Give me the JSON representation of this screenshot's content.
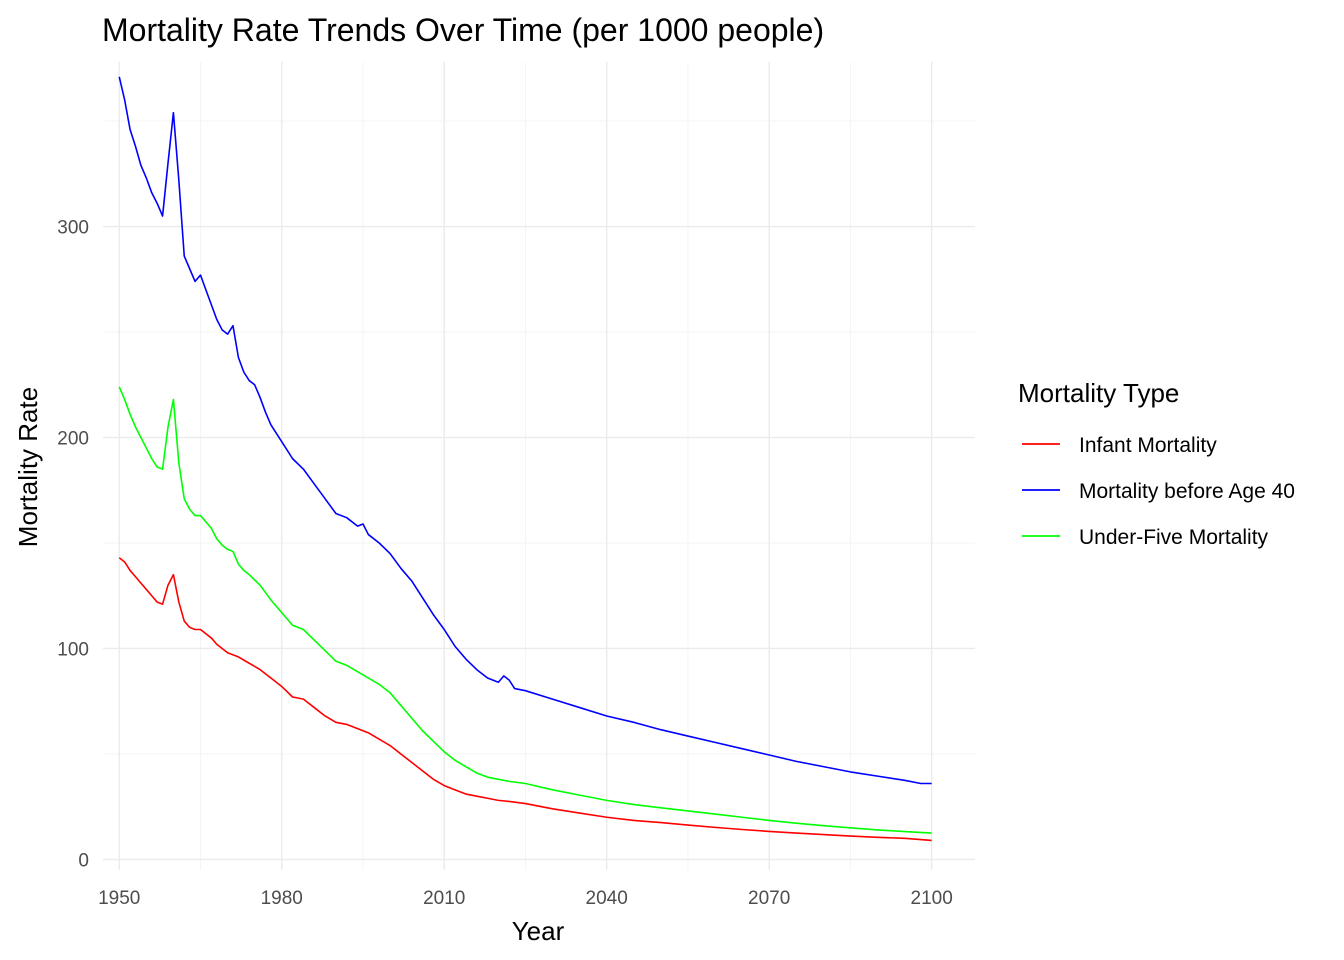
{
  "chart_data": {
    "type": "line",
    "title": "Mortality Rate Trends Over Time (per 1000 people)",
    "xlabel": "Year",
    "ylabel": "Mortality Rate",
    "xlim": [
      1947,
      2108
    ],
    "ylim": [
      -5,
      378
    ],
    "x_ticks": [
      1950,
      1980,
      2010,
      2040,
      2070,
      2100
    ],
    "x_minor_ticks": [
      1965,
      1995,
      2025,
      2055,
      2085
    ],
    "y_ticks": [
      0,
      100,
      200,
      300
    ],
    "y_minor_ticks": [
      50,
      150,
      250,
      350
    ],
    "grid": true,
    "legend": {
      "title": "Mortality Type",
      "position": "right",
      "entries": [
        "Infant Mortality",
        "Mortality before Age 40",
        "Under-Five Mortality"
      ]
    },
    "series": [
      {
        "name": "Infant Mortality",
        "color": "#ff0000",
        "points": [
          [
            1950,
            143
          ],
          [
            1951,
            141
          ],
          [
            1952,
            137
          ],
          [
            1953,
            134
          ],
          [
            1954,
            131
          ],
          [
            1955,
            128
          ],
          [
            1956,
            125
          ],
          [
            1957,
            122
          ],
          [
            1958,
            121
          ],
          [
            1959,
            130
          ],
          [
            1960,
            135
          ],
          [
            1961,
            122
          ],
          [
            1962,
            113
          ],
          [
            1963,
            110
          ],
          [
            1964,
            109
          ],
          [
            1965,
            109
          ],
          [
            1966,
            107
          ],
          [
            1967,
            105
          ],
          [
            1968,
            102
          ],
          [
            1969,
            100
          ],
          [
            1970,
            98
          ],
          [
            1972,
            96
          ],
          [
            1974,
            93
          ],
          [
            1976,
            90
          ],
          [
            1978,
            86
          ],
          [
            1980,
            82
          ],
          [
            1982,
            77
          ],
          [
            1984,
            76
          ],
          [
            1986,
            72
          ],
          [
            1988,
            68
          ],
          [
            1990,
            65
          ],
          [
            1992,
            64
          ],
          [
            1994,
            62
          ],
          [
            1996,
            60
          ],
          [
            1998,
            57
          ],
          [
            2000,
            54
          ],
          [
            2002,
            50
          ],
          [
            2004,
            46
          ],
          [
            2006,
            42
          ],
          [
            2008,
            38
          ],
          [
            2010,
            35
          ],
          [
            2012,
            33
          ],
          [
            2014,
            31
          ],
          [
            2016,
            30
          ],
          [
            2018,
            29
          ],
          [
            2020,
            28
          ],
          [
            2022,
            27.5
          ],
          [
            2025,
            26.5
          ],
          [
            2030,
            24
          ],
          [
            2035,
            22
          ],
          [
            2040,
            20
          ],
          [
            2045,
            18.5
          ],
          [
            2050,
            17.5
          ],
          [
            2055,
            16.3
          ],
          [
            2060,
            15.2
          ],
          [
            2065,
            14.2
          ],
          [
            2070,
            13.3
          ],
          [
            2075,
            12.5
          ],
          [
            2080,
            11.8
          ],
          [
            2085,
            11.1
          ],
          [
            2090,
            10.5
          ],
          [
            2095,
            10
          ],
          [
            2100,
            9
          ]
        ]
      },
      {
        "name": "Mortality before Age 40",
        "color": "#0000ff",
        "points": [
          [
            1950,
            371
          ],
          [
            1951,
            360
          ],
          [
            1952,
            346
          ],
          [
            1953,
            338
          ],
          [
            1954,
            329
          ],
          [
            1955,
            323
          ],
          [
            1956,
            316
          ],
          [
            1957,
            311
          ],
          [
            1958,
            305
          ],
          [
            1959,
            330
          ],
          [
            1960,
            354
          ],
          [
            1961,
            322
          ],
          [
            1962,
            286
          ],
          [
            1963,
            280
          ],
          [
            1964,
            274
          ],
          [
            1965,
            277
          ],
          [
            1966,
            270
          ],
          [
            1967,
            263
          ],
          [
            1968,
            256
          ],
          [
            1969,
            251
          ],
          [
            1970,
            249
          ],
          [
            1971,
            253
          ],
          [
            1972,
            238
          ],
          [
            1973,
            231
          ],
          [
            1974,
            227
          ],
          [
            1975,
            225
          ],
          [
            1976,
            219
          ],
          [
            1977,
            212
          ],
          [
            1978,
            206
          ],
          [
            1980,
            198
          ],
          [
            1982,
            190
          ],
          [
            1984,
            185
          ],
          [
            1986,
            178
          ],
          [
            1988,
            171
          ],
          [
            1990,
            164
          ],
          [
            1992,
            162
          ],
          [
            1994,
            158
          ],
          [
            1995,
            159
          ],
          [
            1996,
            154
          ],
          [
            1998,
            150
          ],
          [
            2000,
            145
          ],
          [
            2002,
            138
          ],
          [
            2004,
            132
          ],
          [
            2006,
            124
          ],
          [
            2008,
            116
          ],
          [
            2010,
            109
          ],
          [
            2012,
            101
          ],
          [
            2014,
            95
          ],
          [
            2016,
            90
          ],
          [
            2018,
            86
          ],
          [
            2020,
            84
          ],
          [
            2021,
            87
          ],
          [
            2022,
            85
          ],
          [
            2023,
            81
          ],
          [
            2025,
            80
          ],
          [
            2030,
            76
          ],
          [
            2035,
            72
          ],
          [
            2040,
            68
          ],
          [
            2045,
            65
          ],
          [
            2050,
            61.5
          ],
          [
            2055,
            58.5
          ],
          [
            2060,
            55.5
          ],
          [
            2065,
            52.5
          ],
          [
            2070,
            49.5
          ],
          [
            2075,
            46.5
          ],
          [
            2080,
            44
          ],
          [
            2085,
            41.5
          ],
          [
            2090,
            39.5
          ],
          [
            2095,
            37.5
          ],
          [
            2098,
            36
          ],
          [
            2100,
            36
          ]
        ]
      },
      {
        "name": "Under-Five Mortality",
        "color": "#00ff00",
        "points": [
          [
            1950,
            224
          ],
          [
            1951,
            218
          ],
          [
            1952,
            211
          ],
          [
            1953,
            205
          ],
          [
            1954,
            200
          ],
          [
            1955,
            195
          ],
          [
            1956,
            190
          ],
          [
            1957,
            186
          ],
          [
            1958,
            185
          ],
          [
            1959,
            205
          ],
          [
            1960,
            218
          ],
          [
            1961,
            188
          ],
          [
            1962,
            171
          ],
          [
            1963,
            166
          ],
          [
            1964,
            163
          ],
          [
            1965,
            163
          ],
          [
            1966,
            160
          ],
          [
            1967,
            157
          ],
          [
            1968,
            152
          ],
          [
            1969,
            149
          ],
          [
            1970,
            147
          ],
          [
            1971,
            146
          ],
          [
            1972,
            140
          ],
          [
            1973,
            137
          ],
          [
            1974,
            135
          ],
          [
            1976,
            130
          ],
          [
            1978,
            123
          ],
          [
            1980,
            117
          ],
          [
            1982,
            111
          ],
          [
            1984,
            109
          ],
          [
            1986,
            104
          ],
          [
            1988,
            99
          ],
          [
            1990,
            94
          ],
          [
            1992,
            92
          ],
          [
            1994,
            89
          ],
          [
            1996,
            86
          ],
          [
            1998,
            83
          ],
          [
            2000,
            79
          ],
          [
            2002,
            73
          ],
          [
            2004,
            67
          ],
          [
            2006,
            61
          ],
          [
            2008,
            56
          ],
          [
            2010,
            51
          ],
          [
            2012,
            47
          ],
          [
            2014,
            44
          ],
          [
            2016,
            41
          ],
          [
            2018,
            39
          ],
          [
            2020,
            38
          ],
          [
            2022,
            37
          ],
          [
            2025,
            36
          ],
          [
            2030,
            33
          ],
          [
            2035,
            30.5
          ],
          [
            2040,
            28
          ],
          [
            2045,
            26
          ],
          [
            2050,
            24.5
          ],
          [
            2055,
            23
          ],
          [
            2060,
            21.5
          ],
          [
            2065,
            20
          ],
          [
            2070,
            18.5
          ],
          [
            2075,
            17.2
          ],
          [
            2080,
            16
          ],
          [
            2085,
            15
          ],
          [
            2090,
            14
          ],
          [
            2095,
            13.2
          ],
          [
            2100,
            12.5
          ]
        ]
      }
    ]
  }
}
